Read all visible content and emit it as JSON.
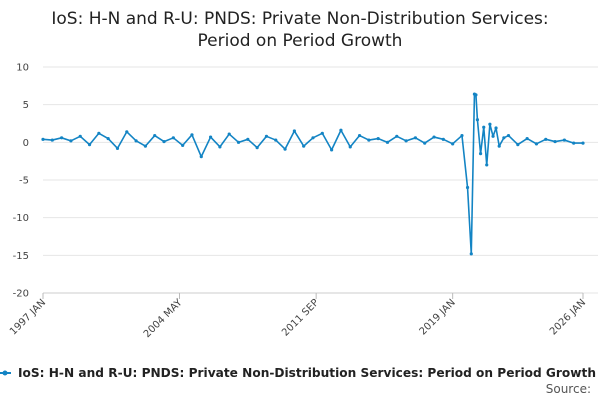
{
  "chart_data": {
    "type": "line",
    "title_line1": "IoS: H-N and R-U: PNDS: Private Non-Distribution Services:",
    "title_line2": "Period on Period Growth",
    "xlabel": "",
    "ylabel": "",
    "x_range": [
      1997.0,
      2026.0
    ],
    "ylim": [
      -20,
      10
    ],
    "y_ticks": [
      10,
      5,
      0,
      -5,
      -10,
      -15,
      -20
    ],
    "x_ticks": [
      {
        "label": "1997 JAN",
        "value": 1997.0
      },
      {
        "label": "2004 MAY",
        "value": 2004.33
      },
      {
        "label": "2011 SEP",
        "value": 2011.67
      },
      {
        "label": "2019 JAN",
        "value": 2019.0
      },
      {
        "label": "2026 JAN",
        "value": 2026.0
      }
    ],
    "grid": "horizontal",
    "legend_position": "bottom",
    "source_label": "Source:",
    "series": [
      {
        "name": "IoS: H-N and R-U: PNDS: Private Non-Distribution Services: Period on Period Growth",
        "color": "#1384c4",
        "x": [
          1997.0,
          1997.5,
          1998.0,
          1998.5,
          1999.0,
          1999.5,
          2000.0,
          2000.5,
          2001.0,
          2001.5,
          2002.0,
          2002.5,
          2003.0,
          2003.5,
          2004.0,
          2004.5,
          2005.0,
          2005.5,
          2006.0,
          2006.5,
          2007.0,
          2007.5,
          2008.0,
          2008.5,
          2009.0,
          2009.5,
          2010.0,
          2010.5,
          2011.0,
          2011.5,
          2012.0,
          2012.5,
          2013.0,
          2013.5,
          2014.0,
          2014.5,
          2015.0,
          2015.5,
          2016.0,
          2016.5,
          2017.0,
          2017.5,
          2018.0,
          2018.5,
          2019.0,
          2019.5,
          2019.8,
          2020.0,
          2020.17,
          2020.25,
          2020.33,
          2020.5,
          2020.67,
          2020.83,
          2021.0,
          2021.17,
          2021.33,
          2021.5,
          2021.75,
          2022.0,
          2022.5,
          2023.0,
          2023.5,
          2024.0,
          2024.5,
          2025.0,
          2025.5,
          2026.0
        ],
        "values": [
          0.4,
          0.3,
          0.6,
          0.2,
          0.8,
          -0.3,
          1.2,
          0.5,
          -0.8,
          1.4,
          0.2,
          -0.5,
          0.9,
          0.1,
          0.6,
          -0.4,
          1.0,
          -1.9,
          0.7,
          -0.6,
          1.1,
          0.0,
          0.4,
          -0.7,
          0.8,
          0.3,
          -0.9,
          1.5,
          -0.5,
          0.6,
          1.2,
          -1.0,
          1.6,
          -0.6,
          0.9,
          0.3,
          0.5,
          0.0,
          0.8,
          0.2,
          0.6,
          -0.1,
          0.7,
          0.4,
          -0.2,
          0.9,
          -6.0,
          -14.8,
          6.4,
          6.3,
          3.0,
          -1.5,
          2.0,
          -3.0,
          2.4,
          0.8,
          1.9,
          -0.5,
          0.6,
          0.9,
          -0.3,
          0.5,
          -0.2,
          0.4,
          0.1,
          0.3,
          -0.1,
          -0.1
        ]
      }
    ]
  }
}
